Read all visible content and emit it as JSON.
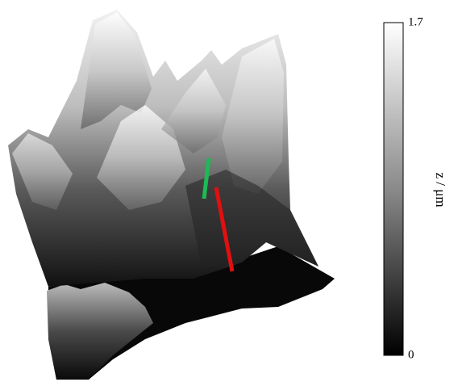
{
  "chart_data": {
    "type": "surface",
    "colorbar_label": "z / μm",
    "clim": [
      0,
      1.7
    ],
    "cticks": [
      0,
      1.7
    ]
  }
}
